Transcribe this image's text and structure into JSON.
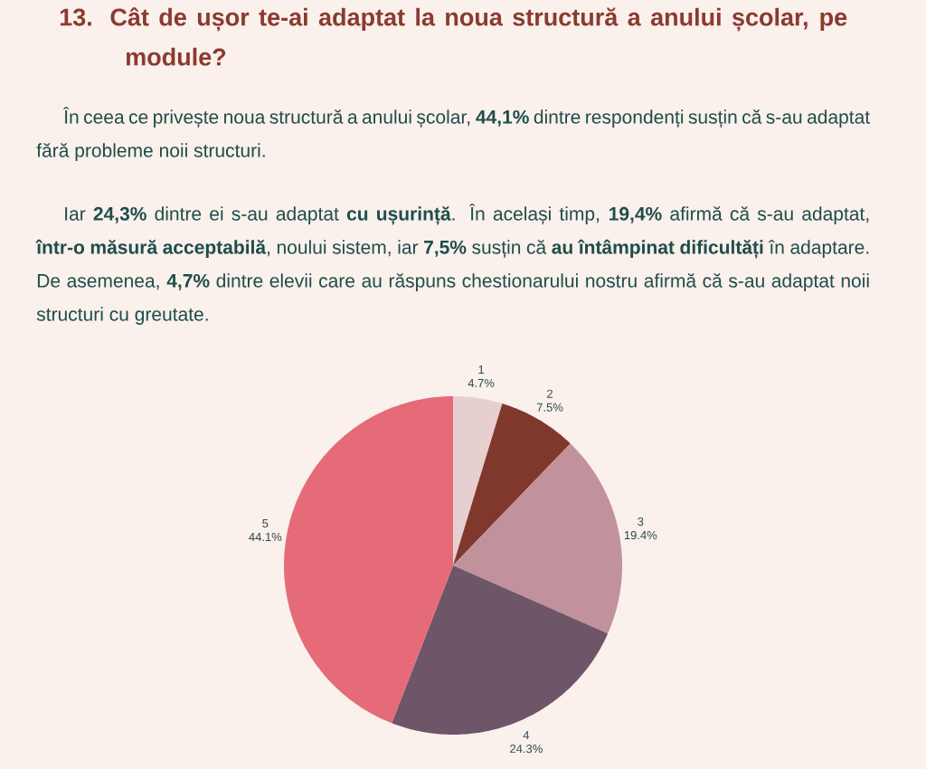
{
  "chart_data": {
    "type": "pie",
    "title": "13. Cât de ușor te-ai adaptat la noua structură a anului școlar, pe module?",
    "annotations": [
      "În ceea ce privește noua structură a anului școlar, **44,1%** dintre respondenți susțin că s-au adaptat fără probleme noii structuri.",
      "Iar **24,3%** dintre ei s-au adaptat **cu ușurință**. În același timp, **19,4%** afirmă că s-au adaptat, **într-o măsură acceptabilă**, noului sistem, iar **7,5%** susțin că **au întâmpinat dificultăți** în adaptare. De asemenea, **4,7%** dintre elevii care au răspuns chestionarului nostru afirmă că s-au adaptat noii structuri cu greutate."
    ],
    "categories": [
      "1",
      "2",
      "3",
      "4",
      "5"
    ],
    "values": [
      4.7,
      7.5,
      19.4,
      24.3,
      44.1
    ],
    "colors": [
      "#e8cfcf",
      "#80382d",
      "#c2929c",
      "#6e5568",
      "#e56b79"
    ],
    "value_labels": [
      "4.7%",
      "7.5%",
      "19.4%",
      "24.3%",
      "44.1%"
    ]
  }
}
